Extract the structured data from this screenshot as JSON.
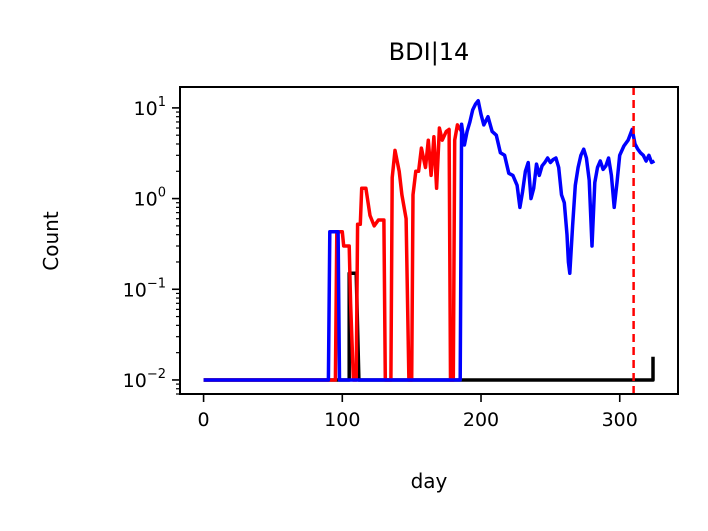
{
  "chart_data": {
    "type": "line",
    "title": "BDI|14",
    "xlabel": "day",
    "ylabel": "Count",
    "yscale": "log",
    "xlim": [
      -17,
      342
    ],
    "ylim": [
      0.007,
      17
    ],
    "x_ticks": [
      0,
      100,
      200,
      300
    ],
    "x_tick_labels": [
      "0",
      "100",
      "200",
      "300"
    ],
    "y_ticks": [
      0.01,
      0.1,
      1,
      10
    ],
    "y_tick_labels": [
      {
        "base": "10",
        "exp": "−2"
      },
      {
        "base": "10",
        "exp": "−1"
      },
      {
        "base": "10",
        "exp": "0"
      },
      {
        "base": "10",
        "exp": "1"
      }
    ],
    "grid": false,
    "vline": {
      "x": 310,
      "color": "#ff0000",
      "style": "dashed"
    },
    "series": [
      {
        "color": "#000000",
        "points": [
          [
            0,
            0.01
          ],
          [
            105,
            0.01
          ],
          [
            105,
            0.15
          ],
          [
            110,
            0.15
          ],
          [
            112,
            0.01
          ],
          [
            180,
            0.01
          ],
          [
            250,
            0.01
          ],
          [
            300,
            0.01
          ],
          [
            324,
            0.01
          ],
          [
            324,
            0.018
          ]
        ]
      },
      {
        "color": "#ff0000",
        "points": [
          [
            0,
            0.01
          ],
          [
            95,
            0.01
          ],
          [
            96,
            0.43
          ],
          [
            100,
            0.43
          ],
          [
            101,
            0.3
          ],
          [
            105,
            0.3
          ],
          [
            106,
            0.07
          ],
          [
            108,
            0.01
          ],
          [
            110,
            0.01
          ],
          [
            111,
            0.52
          ],
          [
            113,
            0.52
          ],
          [
            114,
            1.3
          ],
          [
            117,
            1.3
          ],
          [
            120,
            0.65
          ],
          [
            123,
            0.5
          ],
          [
            126,
            0.58
          ],
          [
            130,
            0.58
          ],
          [
            131,
            0.01
          ],
          [
            135,
            0.01
          ],
          [
            136,
            1.7
          ],
          [
            138,
            3.4
          ],
          [
            141,
            2.0
          ],
          [
            143,
            1.1
          ],
          [
            146,
            0.6
          ],
          [
            148,
            0.01
          ],
          [
            150,
            0.01
          ],
          [
            151,
            1.1
          ],
          [
            153,
            2.0
          ],
          [
            155,
            2.0
          ],
          [
            157,
            3.6
          ],
          [
            160,
            2.2
          ],
          [
            162,
            4.4
          ],
          [
            164,
            1.8
          ],
          [
            166,
            4.8
          ],
          [
            168,
            1.3
          ],
          [
            170,
            6.0
          ],
          [
            172,
            4.4
          ],
          [
            175,
            5.5
          ],
          [
            177,
            5.8
          ],
          [
            178,
            0.01
          ],
          [
            180,
            0.01
          ],
          [
            181,
            4.4
          ],
          [
            183,
            6.5
          ],
          [
            186,
            5.5
          ]
        ]
      },
      {
        "color": "#0000ff",
        "points": [
          [
            0,
            0.01
          ],
          [
            90,
            0.01
          ],
          [
            91,
            0.43
          ],
          [
            97,
            0.43
          ],
          [
            98,
            0.01
          ],
          [
            185,
            0.01
          ],
          [
            186,
            6.6
          ],
          [
            188,
            3.9
          ],
          [
            190,
            5.5
          ],
          [
            192,
            7.0
          ],
          [
            194,
            9.5
          ],
          [
            196,
            11.0
          ],
          [
            198,
            12.0
          ],
          [
            200,
            8.5
          ],
          [
            202,
            6.5
          ],
          [
            205,
            8.0
          ],
          [
            208,
            5.5
          ],
          [
            211,
            5.0
          ],
          [
            214,
            3.2
          ],
          [
            217,
            3.0
          ],
          [
            220,
            1.9
          ],
          [
            223,
            1.8
          ],
          [
            226,
            1.4
          ],
          [
            228,
            0.8
          ],
          [
            230,
            1.2
          ],
          [
            232,
            2.0
          ],
          [
            234,
            2.5
          ],
          [
            236,
            1.0
          ],
          [
            238,
            1.3
          ],
          [
            240,
            2.4
          ],
          [
            242,
            1.8
          ],
          [
            244,
            2.3
          ],
          [
            246,
            2.5
          ],
          [
            248,
            2.8
          ],
          [
            250,
            2.5
          ],
          [
            252,
            2.7
          ],
          [
            254,
            2.8
          ],
          [
            256,
            2.2
          ],
          [
            258,
            1.1
          ],
          [
            260,
            0.9
          ],
          [
            262,
            0.4
          ],
          [
            263,
            0.2
          ],
          [
            264,
            0.15
          ],
          [
            266,
            0.5
          ],
          [
            268,
            1.4
          ],
          [
            270,
            2.2
          ],
          [
            272,
            3.0
          ],
          [
            274,
            3.5
          ],
          [
            276,
            2.8
          ],
          [
            278,
            1.6
          ],
          [
            280,
            0.3
          ],
          [
            282,
            1.5
          ],
          [
            284,
            2.2
          ],
          [
            286,
            2.6
          ],
          [
            288,
            2.1
          ],
          [
            290,
            2.3
          ],
          [
            292,
            2.8
          ],
          [
            294,
            1.8
          ],
          [
            296,
            0.8
          ],
          [
            298,
            1.5
          ],
          [
            300,
            3.0
          ],
          [
            303,
            3.8
          ],
          [
            306,
            4.4
          ],
          [
            309,
            5.8
          ],
          [
            311,
            4.0
          ],
          [
            313,
            3.5
          ],
          [
            315,
            3.2
          ],
          [
            317,
            3.0
          ],
          [
            319,
            2.6
          ],
          [
            321,
            3.0
          ],
          [
            323,
            2.5
          ],
          [
            325,
            2.6
          ]
        ]
      }
    ]
  }
}
